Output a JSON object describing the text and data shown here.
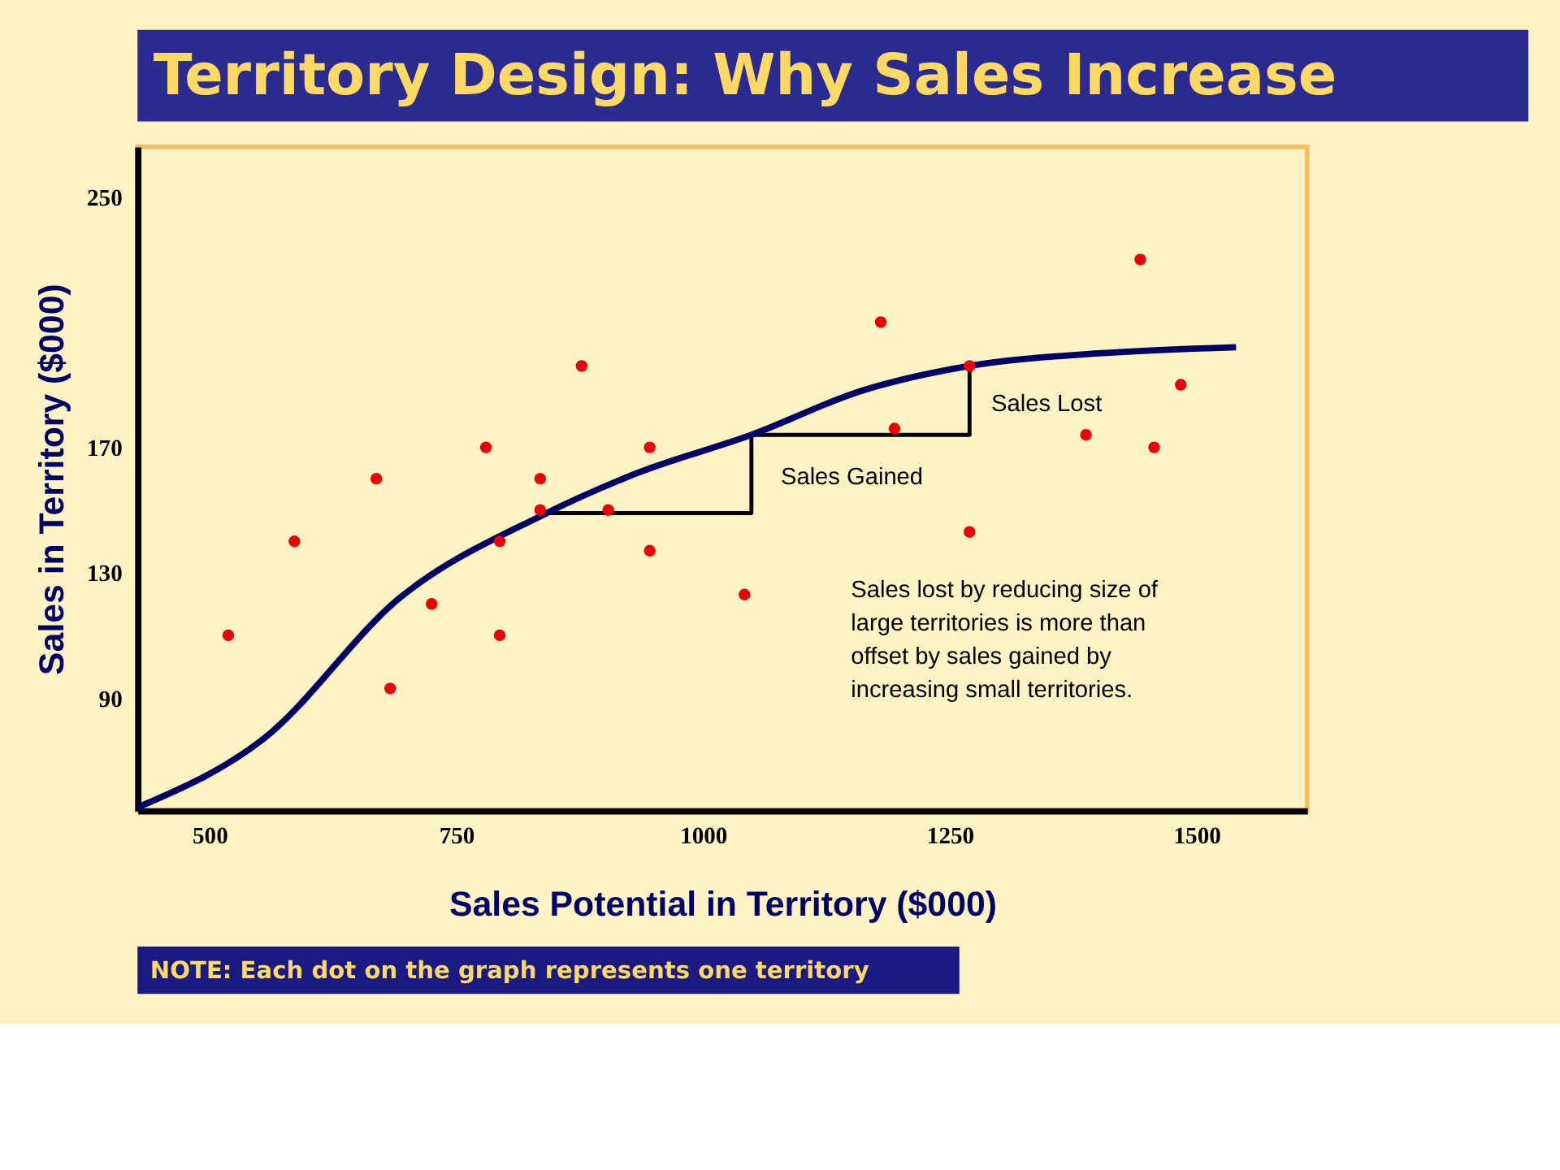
{
  "chart_data": {
    "type": "scatter",
    "title": "Territory Design: Why Sales Increase",
    "xlabel": "Sales Potential in Territory ($000)",
    "ylabel": "Sales in Territory ($000)",
    "xlim": [
      427,
      1612
    ],
    "ylim": [
      54,
      266
    ],
    "xticks": [
      500,
      750,
      1000,
      1250,
      1500
    ],
    "yticks": [
      90,
      130,
      170,
      250
    ],
    "grid": false,
    "marker": "circle",
    "series": [
      {
        "color": "#e8000b",
        "x": [
          519,
          586,
          669,
          683,
          725,
          780,
          794,
          794,
          835,
          835,
          877,
          904,
          946,
          946,
          1042,
          1180,
          1194,
          1270,
          1270,
          1388,
          1443,
          1457,
          1484
        ],
        "values": [
          110,
          140,
          160,
          93,
          120,
          170,
          140,
          110,
          160,
          150,
          196,
          150,
          170,
          137,
          123,
          210,
          176,
          196,
          143,
          174,
          230,
          170,
          190
        ]
      },
      {
        "type": "line",
        "marker": "none",
        "color": "#000066",
        "x": [
          427,
          555,
          693,
          835,
          935,
          1049,
          1160,
          1270,
          1400,
          1540
        ],
        "values": [
          55,
          77,
          122,
          148,
          162,
          174,
          188,
          196,
          200,
          202
        ]
      },
      {
        "type": "line",
        "marker": "none",
        "color": "#000000",
        "x": [
          835,
          1049,
          1049
        ],
        "values": [
          149,
          149,
          174
        ]
      },
      {
        "type": "line",
        "marker": "none",
        "color": "#000000",
        "x": [
          1049,
          1270,
          1270
        ],
        "values": [
          174,
          174,
          196
        ]
      }
    ],
    "annotations": [
      "Sales Gained",
      "Sales Lost",
      "Sales lost by reducing size of large territories is more than offset by sales gained by increasing small territories.",
      "NOTE: Each dot on the graph represents one territory"
    ]
  }
}
